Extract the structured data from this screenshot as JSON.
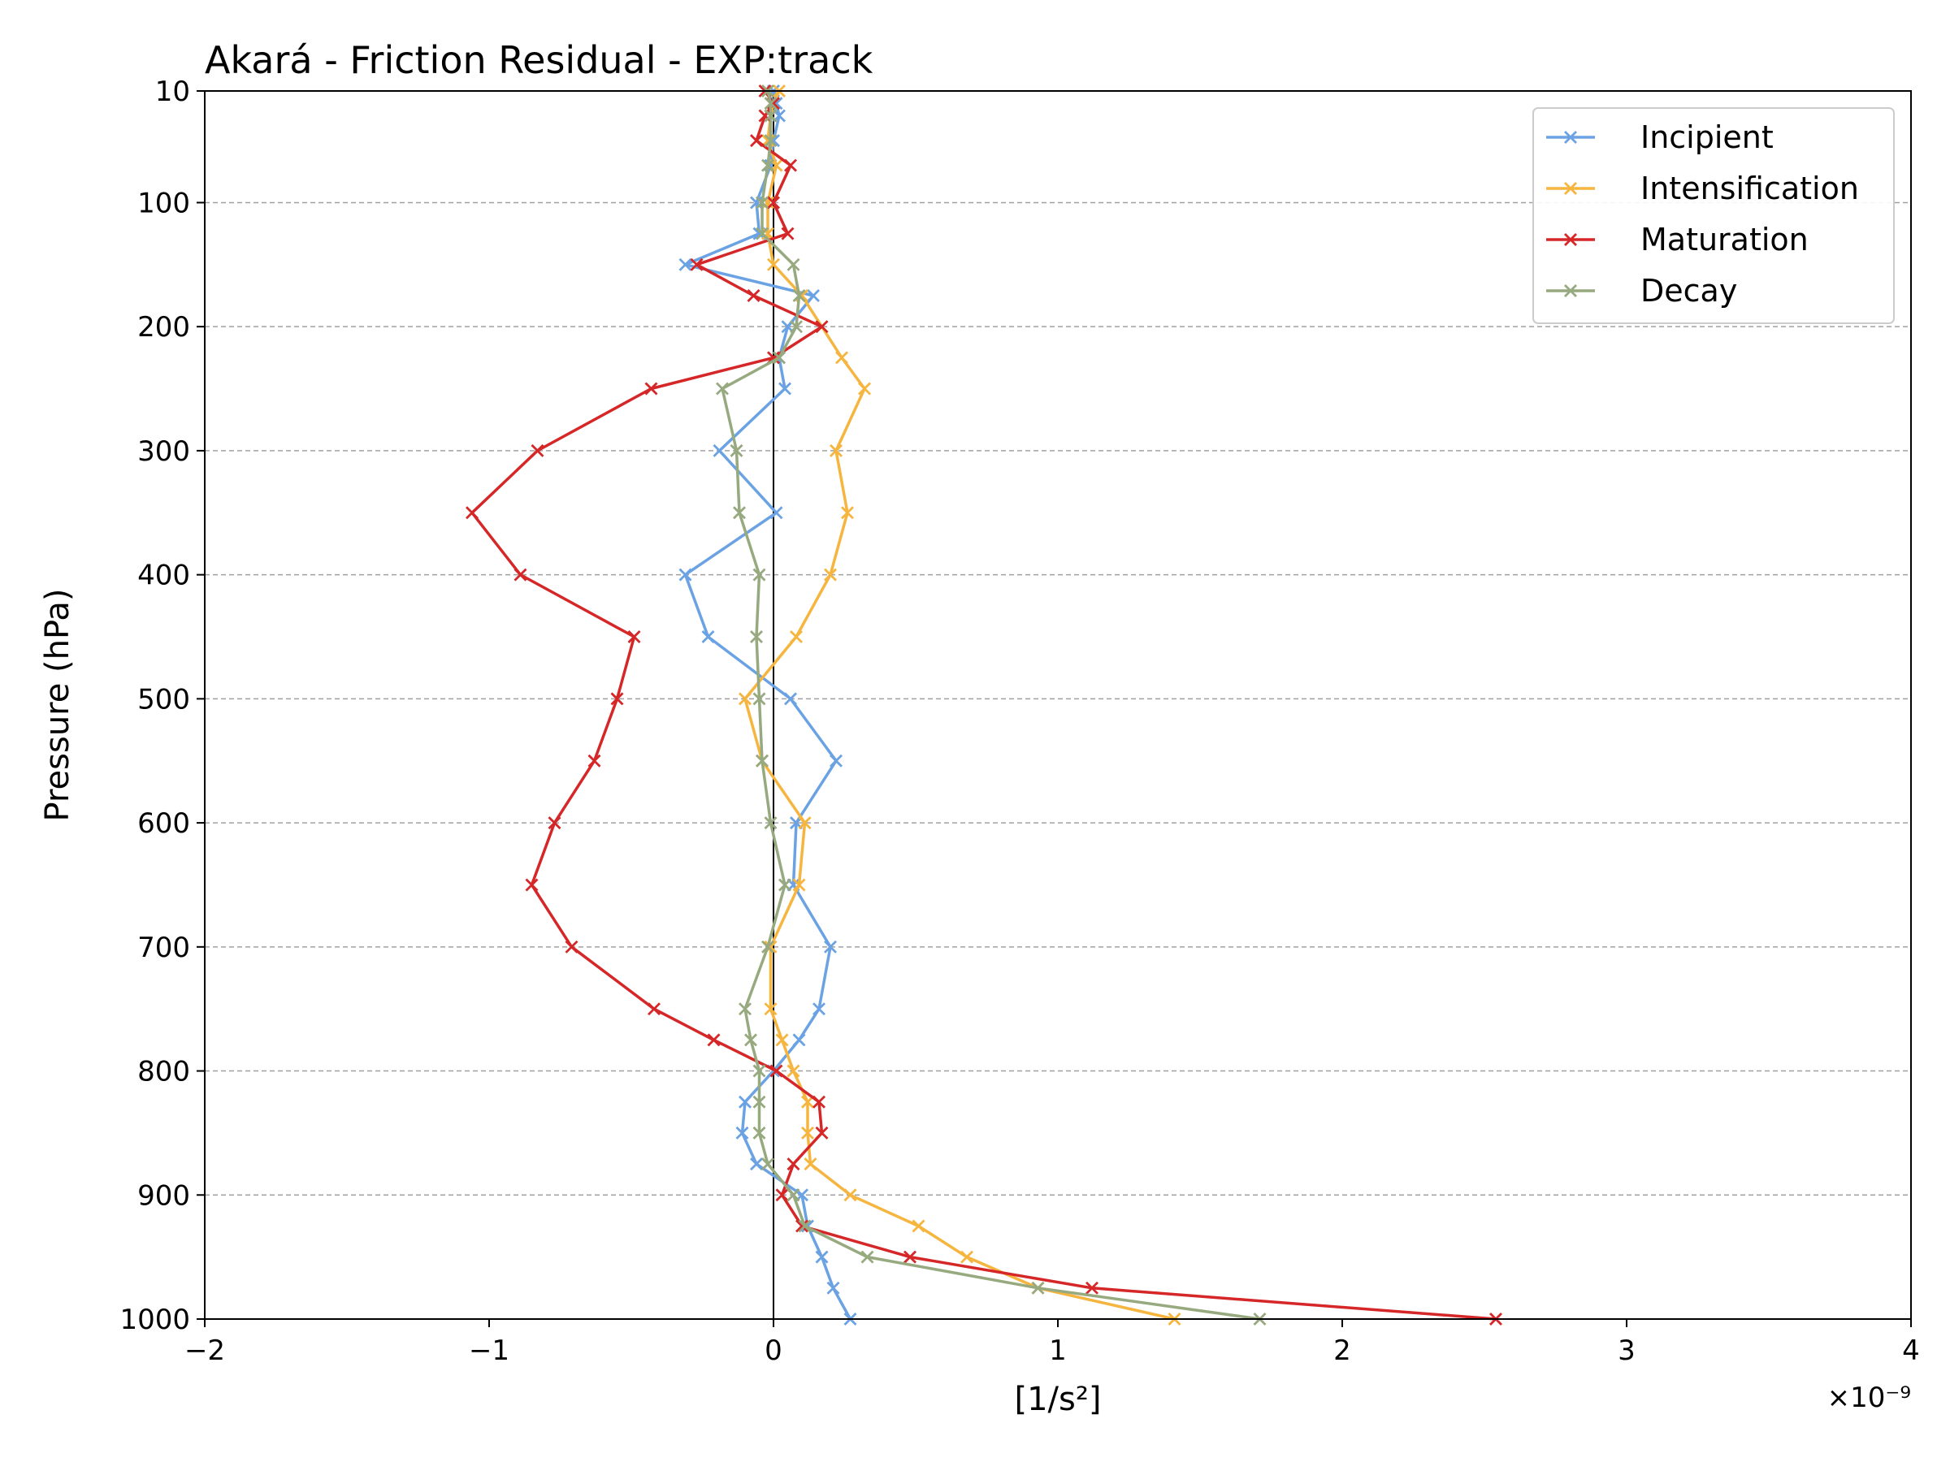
{
  "chart_data": {
    "type": "line",
    "title": "Akará - Friction Residual - EXP:track",
    "xlabel": "[1/s²]",
    "ylabel": "Pressure (hPa)",
    "x_multiplier_label": "×10⁻⁹",
    "xlim": [
      -2,
      4
    ],
    "ylim": [
      1000,
      10
    ],
    "y_inverted": true,
    "xticks": [
      -2,
      -1,
      0,
      1,
      2,
      3,
      4
    ],
    "yticks": [
      10,
      100,
      200,
      300,
      400,
      500,
      600,
      700,
      800,
      900,
      1000
    ],
    "grid": "horizontal-dashed",
    "zero_line": true,
    "legend_position": "top-right",
    "levels": [
      10,
      20,
      30,
      50,
      70,
      100,
      125,
      150,
      175,
      200,
      225,
      250,
      300,
      350,
      400,
      450,
      500,
      550,
      600,
      650,
      700,
      750,
      775,
      800,
      825,
      850,
      875,
      900,
      925,
      950,
      975,
      1000
    ],
    "series": [
      {
        "name": "Incipient",
        "color": "#6aa2e3",
        "values": [
          0.0,
          0.01,
          0.02,
          0.0,
          -0.01,
          -0.06,
          -0.05,
          -0.31,
          0.14,
          0.05,
          0.02,
          0.04,
          -0.19,
          0.01,
          -0.31,
          -0.23,
          0.06,
          0.22,
          0.08,
          0.07,
          0.2,
          0.16,
          0.09,
          0.0,
          -0.1,
          -0.11,
          -0.06,
          0.1,
          0.12,
          0.17,
          0.21,
          0.27
        ]
      },
      {
        "name": "Intensification",
        "color": "#f5b53f",
        "values": [
          0.02,
          0.0,
          -0.01,
          -0.02,
          0.01,
          -0.02,
          -0.02,
          0.0,
          0.1,
          0.17,
          0.24,
          0.32,
          0.22,
          0.26,
          0.2,
          0.08,
          -0.1,
          -0.04,
          0.11,
          0.09,
          -0.01,
          -0.01,
          0.03,
          0.07,
          0.12,
          0.12,
          0.13,
          0.27,
          0.51,
          0.68,
          0.93,
          1.41
        ]
      },
      {
        "name": "Maturation",
        "color": "#d62728",
        "values": [
          -0.03,
          0.0,
          -0.03,
          -0.06,
          0.06,
          0.0,
          0.05,
          -0.27,
          -0.07,
          0.17,
          0.0,
          -0.43,
          -0.83,
          -1.06,
          -0.89,
          -0.49,
          -0.55,
          -0.63,
          -0.77,
          -0.85,
          -0.71,
          -0.42,
          -0.21,
          0.01,
          0.16,
          0.17,
          0.07,
          0.03,
          0.1,
          0.48,
          1.12,
          2.54
        ]
      },
      {
        "name": "Decay",
        "color": "#97a97f",
        "values": [
          -0.02,
          -0.01,
          -0.01,
          -0.01,
          -0.02,
          -0.04,
          -0.04,
          0.07,
          0.09,
          0.08,
          0.02,
          -0.18,
          -0.13,
          -0.12,
          -0.05,
          -0.06,
          -0.05,
          -0.04,
          -0.01,
          0.04,
          -0.02,
          -0.1,
          -0.08,
          -0.05,
          -0.05,
          -0.05,
          -0.02,
          0.07,
          0.11,
          0.33,
          0.93,
          1.71
        ]
      }
    ]
  }
}
